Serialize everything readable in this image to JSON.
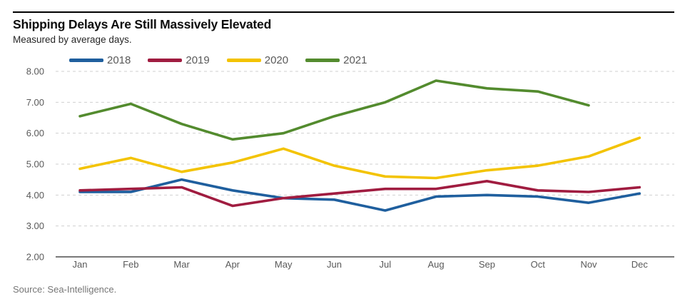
{
  "chart_data": {
    "type": "line",
    "title": "Shipping Delays Are Still Massively Elevated",
    "subtitle": "Measured by average days.",
    "source": "Source: Sea-Intelligence.",
    "xlabel": "",
    "ylabel": "average days",
    "categories": [
      "Jan",
      "Feb",
      "Mar",
      "Apr",
      "May",
      "Jun",
      "Jul",
      "Aug",
      "Sep",
      "Oct",
      "Nov",
      "Dec"
    ],
    "series": [
      {
        "name": "2018",
        "color": "#1F5F9E",
        "values": [
          4.1,
          4.1,
          4.5,
          4.15,
          3.9,
          3.85,
          3.5,
          3.95,
          4.0,
          3.95,
          3.75,
          4.05
        ]
      },
      {
        "name": "2019",
        "color": "#A01C40",
        "values": [
          4.15,
          4.2,
          4.25,
          3.65,
          3.9,
          4.05,
          4.2,
          4.2,
          4.45,
          4.15,
          4.1,
          4.25
        ]
      },
      {
        "name": "2020",
        "color": "#F3C300",
        "values": [
          4.85,
          5.2,
          4.75,
          5.05,
          5.5,
          4.95,
          4.6,
          4.55,
          4.8,
          4.95,
          5.25,
          5.85
        ]
      },
      {
        "name": "2021",
        "color": "#538B2E",
        "values": [
          6.55,
          6.95,
          6.3,
          5.8,
          6.0,
          6.55,
          7.0,
          7.7,
          7.45,
          7.35,
          6.9,
          null
        ]
      }
    ],
    "ylim": [
      2,
      8
    ],
    "y_ticks": [
      "8.00",
      "7.00",
      "6.00",
      "5.00",
      "4.00",
      "3.00",
      "2.00"
    ],
    "grid": "horizontal-dashed",
    "legend_position": "top",
    "grid_color": "#cfcfcf",
    "axis_color": "#3d3d3d",
    "tick_text_color": "#595959"
  }
}
